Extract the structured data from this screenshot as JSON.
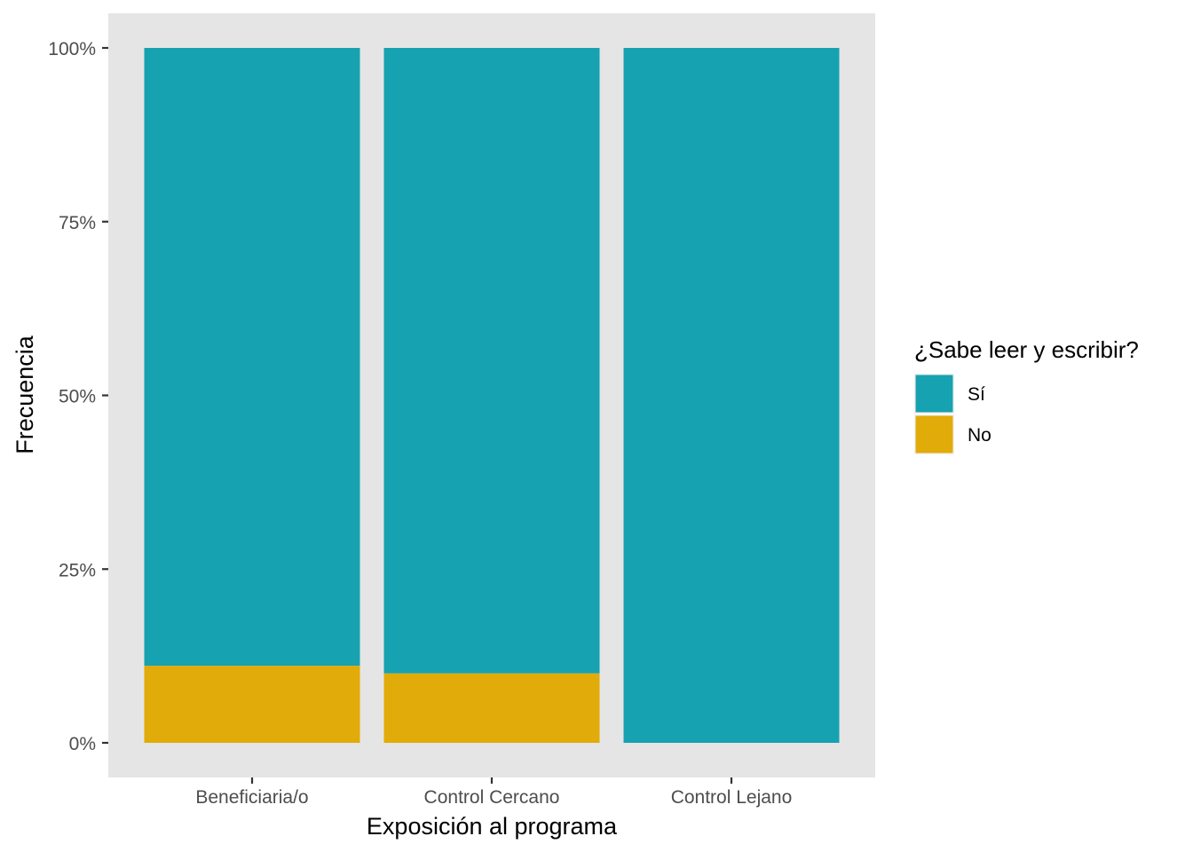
{
  "chart_data": {
    "type": "bar",
    "stacked": true,
    "normalized": true,
    "title": "",
    "xlabel": "Exposición al programa",
    "ylabel": "Frecuencia",
    "categories": [
      "Beneficiaria/o",
      "Control Cercano",
      "Control Lejano"
    ],
    "series": [
      {
        "name": "Sí",
        "color": "#16A2B0",
        "values": [
          0.889,
          0.9,
          1.0
        ]
      },
      {
        "name": "No",
        "color": "#E1AB09",
        "values": [
          0.111,
          0.1,
          0.0
        ]
      }
    ],
    "ylim": [
      0,
      1
    ],
    "yticks": [
      0,
      0.25,
      0.5,
      0.75,
      1
    ],
    "ytick_labels": [
      "0%",
      "25%",
      "50%",
      "75%",
      "100%"
    ],
    "legend": {
      "title": "¿Sabe leer y escribir?",
      "position": "right"
    },
    "grid": false,
    "panel_background": "#E5E5E5"
  }
}
